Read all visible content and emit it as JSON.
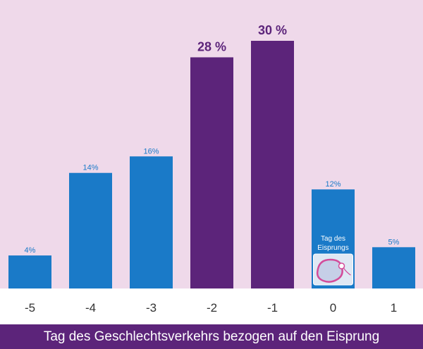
{
  "chart_data": {
    "type": "bar",
    "categories": [
      "-5",
      "-4",
      "-3",
      "-2",
      "-1",
      "0",
      "1"
    ],
    "values": [
      4,
      14,
      16,
      28,
      30,
      12,
      5
    ],
    "labels": [
      "4%",
      "14%",
      "16%",
      "28 %",
      "30 %",
      "12%",
      "5%"
    ],
    "highlighted": [
      false,
      false,
      false,
      true,
      true,
      false,
      false
    ],
    "xlabel": "Tag des Geschlechtsverkehrs bezogen auf den Eisprung",
    "ylim": [
      0,
      30
    ],
    "grid": false,
    "colors": {
      "background": "#efd9ea",
      "bar": "#1a7ac8",
      "bar_highlight": "#5c247a",
      "axis_band": "#ffffff",
      "tick_text": "#333333",
      "xlabel_band": "#5c247a"
    }
  },
  "ovulation_marker": {
    "category": "0",
    "text_line1": "Tag des",
    "text_line2": "Eisprungs",
    "icon": "ovum-sperm-icon"
  }
}
